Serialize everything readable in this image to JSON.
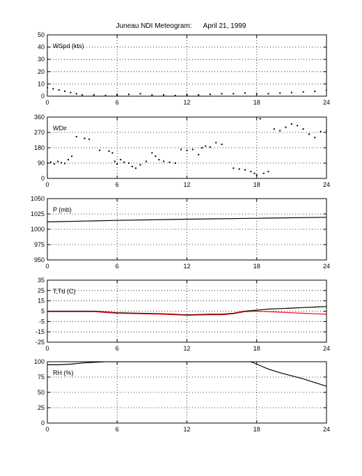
{
  "figure": {
    "title": "Juneau NDI Meteogram:      April 21, 1999"
  },
  "chart_data": [
    {
      "type": "scatter",
      "label": "WSpd (kts)",
      "xlim": [
        0,
        24
      ],
      "ylim": [
        0,
        50
      ],
      "xticks": [
        0,
        6,
        12,
        18,
        24
      ],
      "yticks": [
        0,
        10,
        20,
        30,
        40,
        50
      ],
      "grid": true,
      "series": [
        {
          "color": "#000000",
          "x": [
            0,
            0.5,
            1,
            1.5,
            2,
            2.5,
            3,
            4,
            5,
            6,
            7,
            8,
            9,
            10,
            11,
            12,
            13,
            14,
            15,
            16,
            17,
            18,
            19,
            20,
            21,
            22,
            23,
            24
          ],
          "y": [
            7,
            6,
            5,
            4,
            3,
            2,
            1,
            1,
            0.5,
            1,
            1.5,
            2,
            1,
            1,
            0.5,
            1,
            1,
            1.5,
            2,
            2,
            2.5,
            2,
            2,
            2.5,
            3,
            3.5,
            4,
            5
          ]
        }
      ]
    },
    {
      "type": "scatter",
      "label": "WDir",
      "xlim": [
        0,
        24
      ],
      "ylim": [
        0,
        360
      ],
      "xticks": [
        0,
        6,
        12,
        18,
        24
      ],
      "yticks": [
        0,
        90,
        180,
        270,
        360
      ],
      "grid": true,
      "series": [
        {
          "color": "#000000",
          "x": [
            0,
            0.3,
            0.6,
            0.9,
            1.2,
            1.5,
            1.8,
            2.1,
            2.5,
            3.2,
            3.6,
            4.5,
            5.3,
            5.6,
            5.8,
            6.0,
            6.3,
            6.6,
            7.0,
            7.3,
            7.6,
            8.0,
            8.5,
            9.0,
            9.3,
            9.6,
            10.0,
            10.5,
            11.0,
            11.5,
            12.0,
            12.5,
            13.0,
            13.3,
            13.6,
            14.0,
            14.5,
            15.0,
            16.0,
            16.5,
            17.0,
            17.5,
            17.8,
            18.0,
            18.3,
            18.6,
            19.0,
            19.5,
            20.0,
            20.5,
            21.0,
            21.5,
            22.0,
            22.5,
            23.0,
            23.5,
            24.0
          ],
          "y": [
            90,
            95,
            85,
            100,
            92,
            88,
            110,
            130,
            245,
            235,
            230,
            165,
            160,
            150,
            100,
            85,
            110,
            95,
            90,
            70,
            60,
            80,
            100,
            150,
            130,
            110,
            100,
            95,
            90,
            170,
            165,
            170,
            140,
            180,
            190,
            185,
            210,
            200,
            60,
            55,
            50,
            40,
            30,
            20,
            350,
            30,
            40,
            290,
            280,
            300,
            320,
            310,
            290,
            260,
            240,
            275,
            280
          ]
        }
      ]
    },
    {
      "type": "line",
      "label": "P (mb)",
      "xlim": [
        0,
        24
      ],
      "ylim": [
        950,
        1050
      ],
      "xticks": [
        0,
        6,
        12,
        18,
        24
      ],
      "yticks": [
        950,
        975,
        1000,
        1025,
        1050
      ],
      "grid": true,
      "series": [
        {
          "color": "#000000",
          "x": [
            0,
            6,
            12,
            18,
            24
          ],
          "y": [
            1012,
            1014.5,
            1016.5,
            1018,
            1019.5
          ]
        }
      ]
    },
    {
      "type": "line",
      "label": "T,Td (C)",
      "xlim": [
        0,
        24
      ],
      "ylim": [
        -25,
        35
      ],
      "xticks": [
        0,
        6,
        12,
        18,
        24
      ],
      "yticks": [
        -25,
        -15,
        -5,
        5,
        15,
        25,
        35
      ],
      "grid": true,
      "series": [
        {
          "color": "#000000",
          "x": [
            0,
            2,
            4,
            6,
            8,
            10,
            12,
            14,
            15,
            16,
            17,
            18,
            19,
            20,
            21,
            22,
            23,
            24
          ],
          "y": [
            5,
            5,
            5,
            3.5,
            3,
            2.5,
            1.5,
            2,
            2,
            3,
            5,
            6,
            7,
            7.5,
            8,
            8.5,
            9,
            9.5
          ]
        },
        {
          "color": "#ff0000",
          "x": [
            0,
            2,
            4,
            6,
            8,
            10,
            12,
            14,
            15,
            16,
            17,
            18,
            19,
            20,
            21,
            22,
            23,
            24
          ],
          "y": [
            4.5,
            4.5,
            4.5,
            3,
            2.5,
            2,
            1,
            1.5,
            1.5,
            2.5,
            4.5,
            5,
            4.5,
            4,
            3.5,
            3,
            2.5,
            2
          ]
        }
      ]
    },
    {
      "type": "line",
      "label": "RH (%)",
      "xlim": [
        0,
        24
      ],
      "ylim": [
        0,
        100
      ],
      "xticks": [
        0,
        6,
        12,
        18,
        24
      ],
      "yticks": [
        0,
        25,
        50,
        75,
        100
      ],
      "grid": true,
      "series": [
        {
          "color": "#000000",
          "x": [
            0,
            1,
            2,
            3,
            4,
            5,
            6,
            8,
            10,
            12,
            14,
            16,
            17.5,
            18,
            19,
            20,
            21,
            22,
            23,
            24
          ],
          "y": [
            95,
            95,
            96,
            98,
            99,
            100,
            100,
            100,
            100,
            100,
            100,
            100,
            100,
            96,
            88,
            82,
            77,
            72,
            66,
            60
          ]
        }
      ]
    }
  ]
}
